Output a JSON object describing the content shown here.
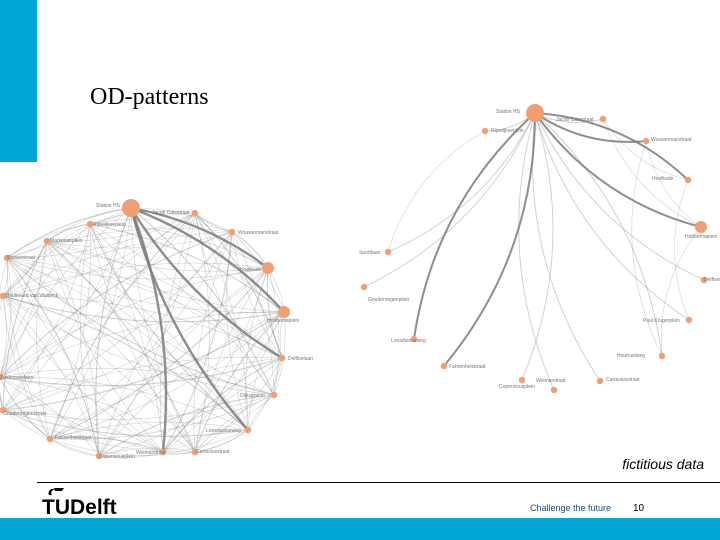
{
  "slide": {
    "title": "OD-patterns",
    "note": "fictitious data",
    "footer_slogan": "Challenge the future",
    "page_number": "10",
    "logo_text": "TUDelft",
    "colors": {
      "accent": "#00a6d6",
      "node": "#f0a070",
      "edge": "#7a7a7a"
    }
  },
  "graph_left": {
    "nodes": [
      {
        "label": "Station HS",
        "weight": 3
      },
      {
        "label": "Jacob Catsstraat",
        "weight": 1
      },
      {
        "label": "Rijswijkseplein",
        "weight": 1
      },
      {
        "label": "Markenseplein",
        "weight": 1
      },
      {
        "label": "Wouwermanstraat",
        "weight": 1
      },
      {
        "label": "Stuiverstraat",
        "weight": 1
      },
      {
        "label": "Hoefkade",
        "weight": 2
      },
      {
        "label": "Boulevard van Waldeck",
        "weight": 1
      },
      {
        "label": "Hobbemaplein",
        "weight": 2
      },
      {
        "label": "Delftselaan",
        "weight": 1
      },
      {
        "label": "Dijksgracht",
        "weight": 1
      },
      {
        "label": "Zuiderparklaan",
        "weight": 1
      },
      {
        "label": "Goudenregenstraat",
        "weight": 1
      },
      {
        "label": "Loosduinseweg",
        "weight": 1
      },
      {
        "label": "Fahrenheitstraat",
        "weight": 1
      },
      {
        "label": "Copernicusplein",
        "weight": 1
      },
      {
        "label": "Weimarstraat",
        "weight": 1
      },
      {
        "label": "Cartesiusstraat",
        "weight": 1
      }
    ]
  },
  "graph_right": {
    "nodes": [
      {
        "label": "Station HS",
        "weight": 3
      },
      {
        "label": "Jacob Catsstraat",
        "weight": 1
      },
      {
        "label": "Rijswijkseplein",
        "weight": 1
      },
      {
        "label": "Wouwermanstraat",
        "weight": 1
      },
      {
        "label": "Hoefkade",
        "weight": 1
      },
      {
        "label": "Hobbemaplein",
        "weight": 2
      },
      {
        "label": "Sportlaan",
        "weight": 1
      },
      {
        "label": "Delftselaan",
        "weight": 1
      },
      {
        "label": "Goudenregenplein",
        "weight": 1
      },
      {
        "label": "Paul Krugerplein",
        "weight": 1
      },
      {
        "label": "Houtrustweg",
        "weight": 1
      },
      {
        "label": "Loosduinseweg",
        "weight": 1
      },
      {
        "label": "Fahrenheitstraat",
        "weight": 1
      },
      {
        "label": "Weimarstraat",
        "weight": 1
      },
      {
        "label": "Copernicusplein",
        "weight": 1
      },
      {
        "label": "Cartesiusstraat",
        "weight": 1
      }
    ]
  }
}
